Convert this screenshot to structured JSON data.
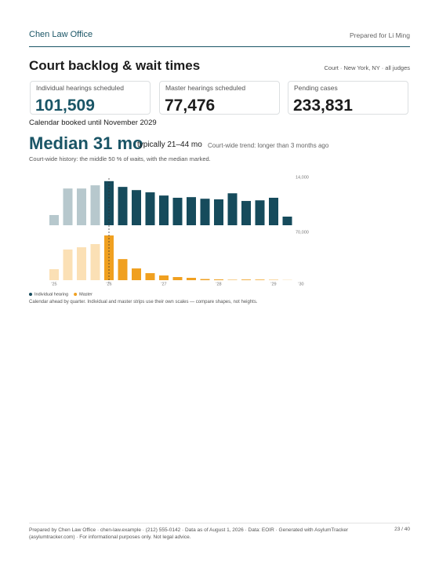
{
  "header": {
    "firm": "Chen Law Office",
    "prepared_for": "Prepared for Li Ming"
  },
  "section": {
    "title": "Court backlog & wait times",
    "court": "Court · New York, NY · all judges",
    "cards": [
      {
        "label": "Individual hearings scheduled",
        "value": "101,509"
      },
      {
        "label": "Master hearings scheduled",
        "value": "77,476"
      },
      {
        "label": "Pending cases",
        "value": "233,831"
      }
    ],
    "booked_until": "Calendar booked until November 2029",
    "median": "Median 31 mo",
    "typical": "typically 21–44 mo",
    "trend": "Court-wide trend: longer than 3 months ago",
    "history_note": "Court-wide history: the middle 50 % of waits, with the median marked."
  },
  "chart_data": [
    {
      "type": "bar",
      "name": "Individual hearing",
      "color": "#164b5c",
      "ylim": [
        0,
        14000
      ],
      "yticks": [
        {
          "value": 14000,
          "label": "14,000"
        }
      ],
      "values": [
        3200,
        11500,
        11500,
        12500,
        13800,
        12000,
        11000,
        10300,
        9300,
        8600,
        8800,
        8300,
        8100,
        10000,
        7600,
        7800,
        8600,
        2700,
        null
      ],
      "colors": [
        "#b7c8cd",
        "#b7c8cd",
        "#b7c8cd",
        "#b7c8cd",
        "#164b5c",
        "#164b5c",
        "#164b5c",
        "#164b5c",
        "#164b5c",
        "#164b5c",
        "#164b5c",
        "#164b5c",
        "#164b5c",
        "#164b5c",
        "#164b5c",
        "#164b5c",
        "#164b5c",
        "#164b5c",
        "#164b5c"
      ]
    },
    {
      "type": "bar",
      "name": "Master",
      "color": "#f0a020",
      "ylim": [
        0,
        70000
      ],
      "yticks": [
        {
          "value": 70000,
          "label": "70,000"
        }
      ],
      "categories": [
        "'25",
        null,
        null,
        null,
        "'26",
        null,
        null,
        null,
        "'27",
        null,
        null,
        null,
        "'28",
        null,
        null,
        null,
        "'29",
        null,
        "'30"
      ],
      "values": [
        17200,
        48000,
        51500,
        56500,
        70000,
        33000,
        18400,
        11000,
        7400,
        4900,
        3700,
        1800,
        1200,
        600,
        1000,
        900,
        500,
        200,
        null
      ],
      "colors": [
        "#fbe0b5",
        "#fbe0b5",
        "#fbe0b5",
        "#fbe0b5",
        "#f0a020",
        "#f0a020",
        "#f0a020",
        "#f0a020",
        "#f0a020",
        "#f0a020",
        "#f0a020",
        "#f0a020",
        "#f0a020",
        "#f0a020",
        "#f0a020",
        "#f0a020",
        "#f0a020",
        "#f0a020",
        "#f0a020"
      ]
    }
  ],
  "caption": "Calendar ahead by quarter. Individual and master strips use their own scales — compare shapes, not heights.",
  "footer": {
    "text": "Prepared by Chen Law Office · chen-law.example · (212) 555-0142 · Data as of August 1, 2026 · Data: EOIR · Generated with AsylumTracker (asylumtracker.com) · For informational purposes only. Not legal advice.",
    "page": "23 / 40"
  }
}
